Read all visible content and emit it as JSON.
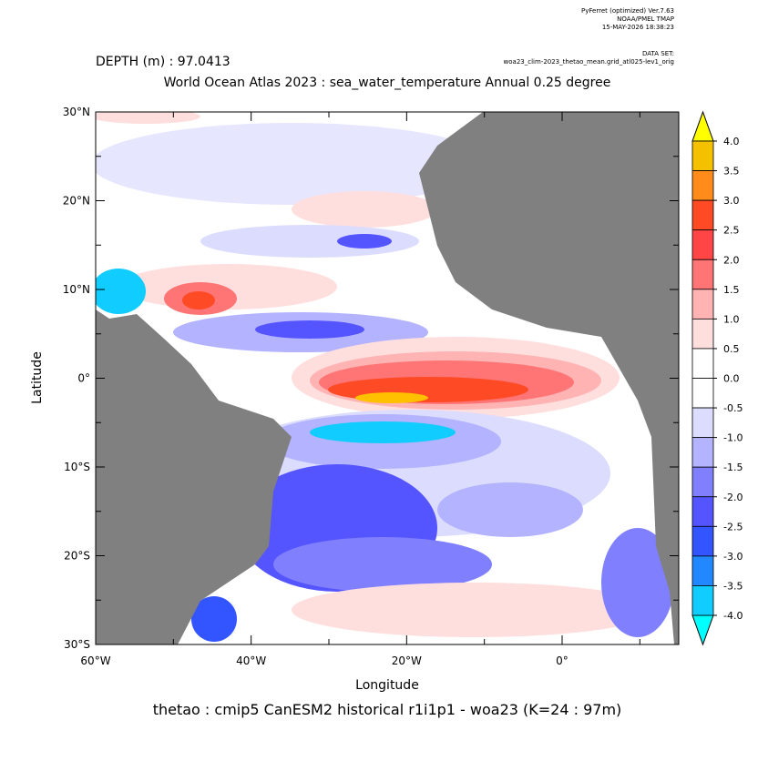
{
  "header": {
    "software": "PyFerret (optimized) Ver.7.63",
    "org": "NOAA/PMEL TMAP",
    "timestamp": "15-MAY-2026 18:38:23",
    "dataset_label": "DATA SET:",
    "dataset": "woa23_clim-2023_thetao_mean.grid_atl025-lev1_orig",
    "depth": "DEPTH (m) : 97.0413",
    "title": "World Ocean Atlas 2023 : sea_water_temperature Annual  0.25 degree"
  },
  "map": {
    "xlabel": "Longitude",
    "ylabel": "Latitude",
    "xlim": [
      -60,
      15
    ],
    "ylim": [
      -30,
      30
    ],
    "xticks": [
      {
        "value": -60,
        "label": "60°W"
      },
      {
        "value": -40,
        "label": "40°W"
      },
      {
        "value": -20,
        "label": "20°W"
      },
      {
        "value": 0,
        "label": "0°"
      }
    ],
    "xminor": [
      -50,
      -30,
      -10,
      10
    ],
    "yticks": [
      {
        "value": 30,
        "label": "30°N"
      },
      {
        "value": 20,
        "label": "20°N"
      },
      {
        "value": 10,
        "label": "10°N"
      },
      {
        "value": 0,
        "label": "0°"
      },
      {
        "value": -10,
        "label": "10°S"
      },
      {
        "value": -20,
        "label": "20°S"
      },
      {
        "value": -30,
        "label": "30°S"
      }
    ],
    "yminor": [
      25,
      15,
      5,
      -5,
      -15,
      -25
    ],
    "land_color": "#808080"
  },
  "colorbar": {
    "levels": [
      {
        "value": 4,
        "label": "4.0"
      },
      {
        "value": 3.5,
        "label": "3.5"
      },
      {
        "value": 3,
        "label": "3.0"
      },
      {
        "value": 2.5,
        "label": "2.5"
      },
      {
        "value": 2,
        "label": "2.0"
      },
      {
        "value": 1.5,
        "label": "1.5"
      },
      {
        "value": 1,
        "label": "1.0"
      },
      {
        "value": 0.5,
        "label": "0.5"
      },
      {
        "value": 0,
        "label": "0.0"
      },
      {
        "value": -0.5,
        "label": "-0.5"
      },
      {
        "value": -1,
        "label": "-1.0"
      },
      {
        "value": -1.5,
        "label": "-1.5"
      },
      {
        "value": -2,
        "label": "-2.0"
      },
      {
        "value": -2.5,
        "label": "-2.5"
      },
      {
        "value": -3,
        "label": "-3.0"
      },
      {
        "value": -3.5,
        "label": "-3.5"
      },
      {
        "value": -4,
        "label": "-4.0"
      }
    ],
    "colors": [
      "#f5c000",
      "#ff8c1a",
      "#ff4a26",
      "#ff4545",
      "#ff7575",
      "#ffb3b3",
      "#ffdede",
      "#ffffff",
      "#ffffff",
      "#dcdcff",
      "#b3b3ff",
      "#8080ff",
      "#5555ff",
      "#3355ff",
      "#2288ff",
      "#10ccff"
    ],
    "over_color": "#ffff00",
    "under_color": "#00ffff"
  },
  "footer": "thetao : cmip5 CanESM2 historical r1i1p1 - woa23  (K=24 : 97m)"
}
